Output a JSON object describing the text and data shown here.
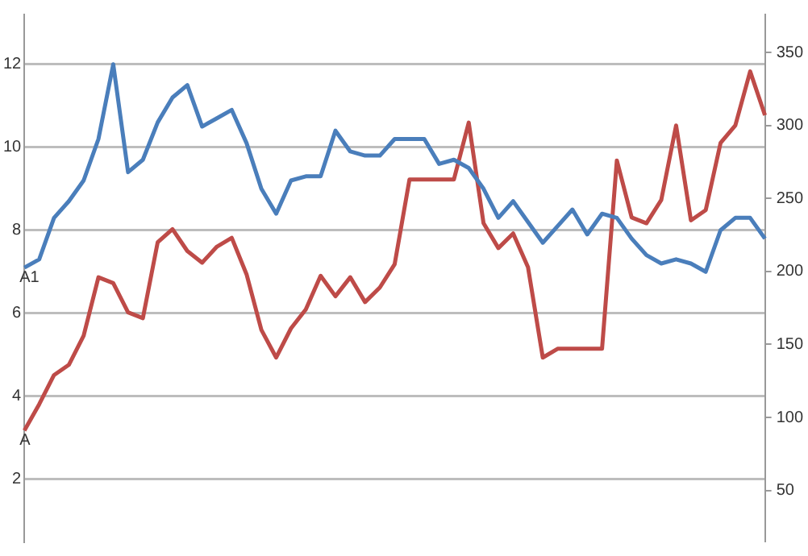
{
  "chart_data": {
    "type": "line",
    "categories": [
      null,
      null,
      null,
      null,
      null,
      null,
      null,
      null,
      null,
      null,
      null,
      null,
      null,
      null,
      null,
      null,
      null,
      null,
      null,
      null,
      null,
      null,
      null,
      null,
      null,
      null,
      null,
      null,
      null,
      null,
      null,
      null,
      null,
      null,
      null,
      null,
      null,
      null,
      null,
      null,
      null,
      null,
      null,
      null,
      null,
      null,
      null,
      null,
      null,
      null,
      null
    ],
    "series": [
      {
        "color": "#4a7ebb",
        "values": [
          7.1,
          7.3,
          8.3,
          8.7,
          9.2,
          10.2,
          12.0,
          9.4,
          9.7,
          10.6,
          11.2,
          11.5,
          10.5,
          10.7,
          10.9,
          10.1,
          9.0,
          8.4,
          9.2,
          9.3,
          9.3,
          10.4,
          9.9,
          9.8,
          9.8,
          10.2,
          10.2,
          10.2,
          9.6,
          9.7,
          9.5,
          9.0,
          8.3,
          8.7,
          8.2,
          7.7,
          8.1,
          8.5,
          7.9,
          8.4,
          8.3,
          7.8,
          7.4,
          7.2,
          7.3,
          7.2,
          7.0,
          8.0,
          8.3,
          8.3,
          7.8
        ]
      },
      {
        "color": "#be4b48",
        "axis": "y2",
        "values": [
          91,
          109,
          129,
          136,
          156,
          196,
          192,
          172,
          168,
          220,
          229,
          214,
          206,
          217,
          223,
          198,
          160,
          141,
          161,
          174,
          197,
          183,
          196,
          179,
          189,
          205,
          263,
          263,
          263,
          263,
          302,
          233,
          216,
          226,
          203,
          141,
          147,
          147,
          147,
          147,
          276,
          237,
          233,
          249,
          300,
          235,
          242,
          288,
          300,
          337,
          307
        ]
      }
    ],
    "ylim": [
      0.5,
      13.2
    ],
    "yticks": [
      2,
      4,
      6,
      8,
      10,
      12
    ],
    "y2lim": [
      15,
      376
    ],
    "y2ticks": [
      50,
      100,
      150,
      200,
      250,
      300,
      350
    ],
    "grid": "y",
    "legend": false,
    "marker": "none",
    "line_style": "solid",
    "annotations": [
      "A1",
      "A"
    ]
  }
}
